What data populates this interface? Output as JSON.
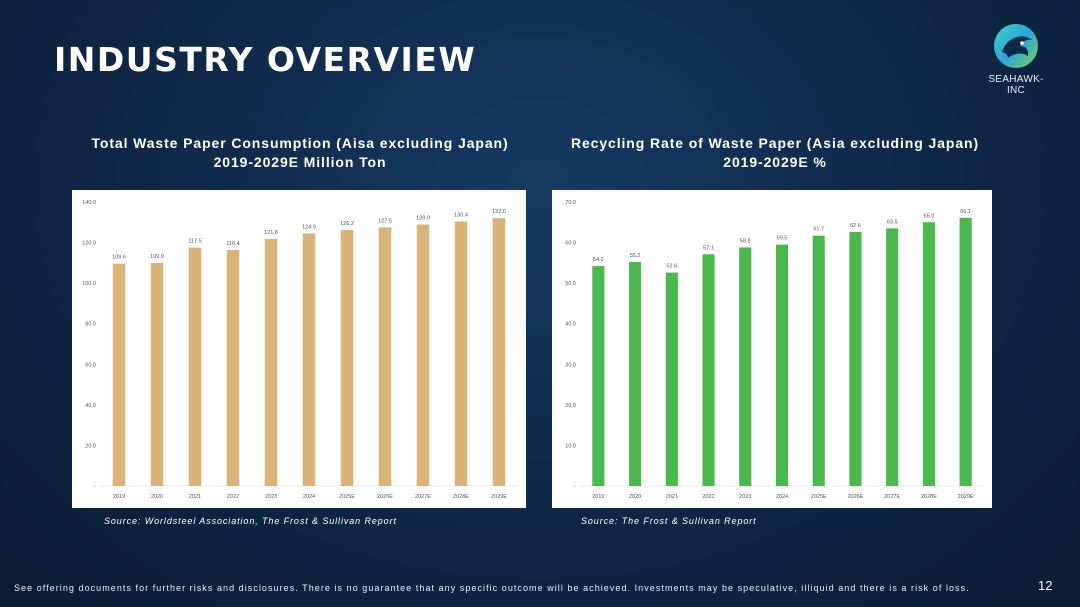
{
  "page": {
    "title": "INDUSTRY OVERVIEW",
    "logo_text": "SEAHAWK-INC",
    "footer": "See offering documents for further risks and disclosures. There is no guarantee that any specific outcome will be achieved. Investments may be speculative, illiquid and there is a risk of loss.",
    "page_number": "12",
    "logo_icon": "hawk-head-icon"
  },
  "chart_data": [
    {
      "type": "bar",
      "title": "Total Waste Paper Consumption  (Aisa excluding Japan)",
      "subtitle": "2019-2029E Million Ton",
      "categories": [
        "2019",
        "2020",
        "2021",
        "2022",
        "2023",
        "2024",
        "2025E",
        "2026E",
        "2027E",
        "2028E",
        "2029E"
      ],
      "values": [
        109.6,
        109.9,
        117.5,
        116.4,
        121.8,
        124.5,
        126.2,
        127.5,
        128.9,
        130.4,
        132.0
      ],
      "value_labels": [
        "109.6",
        "109.9",
        "117.5",
        "116.4",
        "121.8",
        "124.5",
        "126.2",
        "127.5",
        "128.9",
        "130.4",
        "132.0"
      ],
      "ylim": [
        0,
        140
      ],
      "yticks": [
        "-",
        "20.0",
        "40.0",
        "60.0",
        "80.0",
        "100.0",
        "120.0",
        "140.0"
      ],
      "color": "#d9b378",
      "grid": false,
      "source": "Source: Worldsteel Association, The Frost & Sullivan Report"
    },
    {
      "type": "bar",
      "title": "Recycling Rate of Waste Paper (Asia excluding Japan)",
      "subtitle": "2019-2029E %",
      "categories": [
        "2019",
        "2020",
        "2021",
        "2022",
        "2023",
        "2024",
        "2025E",
        "2026E",
        "2027E",
        "2028E",
        "2029E"
      ],
      "values": [
        54.2,
        55.2,
        52.6,
        57.1,
        58.8,
        59.5,
        61.7,
        62.6,
        63.5,
        65.0,
        66.1
      ],
      "value_labels": [
        "54.2",
        "55.2",
        "52.6",
        "57.1",
        "58.8",
        "59.5",
        "61.7",
        "62.6",
        "63.5",
        "65.0",
        "66.1"
      ],
      "ylim": [
        0,
        70
      ],
      "yticks": [
        "-",
        "10.0",
        "20.0",
        "30.0",
        "40.0",
        "50.0",
        "60.0",
        "70.0"
      ],
      "color": "#4bb84d",
      "grid": false,
      "source": "Source: The Frost & Sullivan Report"
    }
  ]
}
